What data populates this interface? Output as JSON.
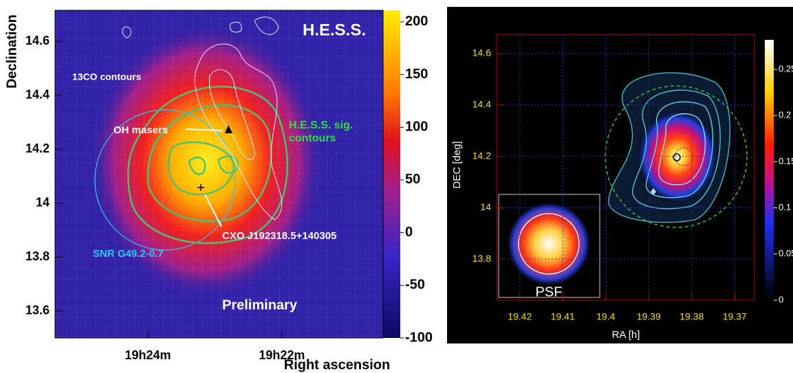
{
  "chart_data": [
    {
      "type": "heatmap",
      "ylabel": "Declination",
      "xlabel": "Right ascension",
      "xlim": [
        19.4231,
        19.3415
      ],
      "xticks": [
        {
          "value": 19.4,
          "label": "19h24m"
        },
        {
          "value": 19.36667,
          "label": "19h22m"
        }
      ],
      "ylim": [
        13.5,
        14.715
      ],
      "yticks": [
        13.6,
        13.8,
        14,
        14.2,
        14.4,
        14.6
      ],
      "colorbar_lim": [
        -100,
        211
      ],
      "colorbar_ticks": [
        -100,
        -50,
        0,
        50,
        100,
        150,
        200
      ],
      "grid": false,
      "annotations": [
        "H.E.S.S.",
        "13CO contours",
        "OH masers",
        "H.E.S.S. sig.",
        "contours",
        "CXO J192318.5+140305",
        "SNR G49.2-0.7",
        "Preliminary"
      ]
    },
    {
      "type": "heatmap",
      "ylabel": "DEC [deg]",
      "xlabel": "RA [h]",
      "xlim": [
        19.4254,
        19.3654
      ],
      "xticks": [
        19.42,
        19.41,
        19.4,
        19.39,
        19.38,
        19.37
      ],
      "ylim": [
        13.64,
        14.675
      ],
      "yticks": [
        13.8,
        14,
        14.2,
        14.4,
        14.6
      ],
      "colorbar_lim": [
        0,
        0.282
      ],
      "colorbar_ticks": [
        0,
        0.05,
        0.1,
        0.15,
        0.2,
        0.25
      ],
      "grid": true,
      "annotations": [
        "PSF"
      ]
    }
  ]
}
